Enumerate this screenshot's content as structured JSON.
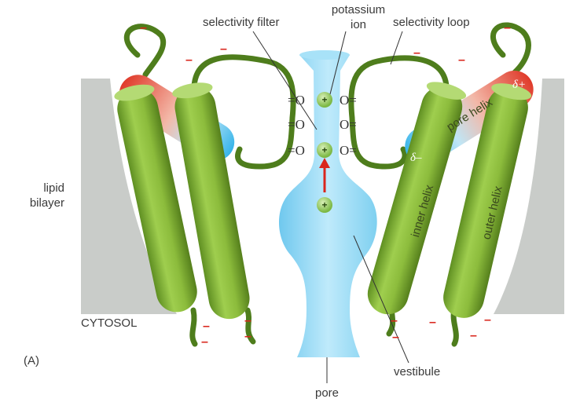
{
  "labels": {
    "selectivity_filter": "selectivity filter",
    "potassium": "potassium",
    "ion": "ion",
    "selectivity_loop": "selectivity loop",
    "lipid": "lipid",
    "bilayer": "bilayer",
    "cytosol": "CYTOSOL",
    "panel": "(A)",
    "pore": "pore",
    "vestibule": "vestibule",
    "pore_helix": "pore helix",
    "inner_helix": "inner helix",
    "outer_helix": "outer helix"
  },
  "symbols": {
    "carbonyl_left": "=O",
    "carbonyl_right": "O=",
    "ion_charge": "+",
    "negative_charge": "–",
    "delta_plus": "δ+",
    "delta_minus": "δ–"
  },
  "colors": {
    "helix_green": "#8cbc3c",
    "pore_blue": "#8fd8f4",
    "charge_red": "#d9261c",
    "membrane_gray": "#c9ccc9",
    "ion_green": "#9ccf68"
  }
}
